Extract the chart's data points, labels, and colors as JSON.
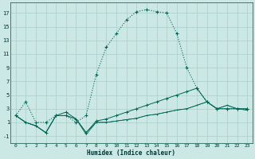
{
  "xlabel": "Humidex (Indice chaleur)",
  "bg_color": "#cce8e4",
  "grid_color": "#aacfcb",
  "line_color": "#006655",
  "xlim": [
    -0.5,
    23.5
  ],
  "ylim": [
    -2,
    18.5
  ],
  "xticks": [
    0,
    1,
    2,
    3,
    4,
    5,
    6,
    7,
    8,
    9,
    10,
    11,
    12,
    13,
    14,
    15,
    16,
    17,
    18,
    19,
    20,
    21,
    22,
    23
  ],
  "yticks": [
    -1,
    1,
    3,
    5,
    7,
    9,
    11,
    13,
    15,
    17
  ],
  "series1": [
    2,
    4,
    1,
    1,
    2,
    2,
    1,
    2,
    8,
    12,
    14,
    16,
    17.2,
    17.5,
    17.2,
    17,
    14,
    9,
    6,
    4,
    3,
    3,
    3,
    3
  ],
  "series2": [
    2,
    1,
    0.5,
    -0.5,
    2,
    2,
    1.5,
    -0.5,
    1,
    1,
    1.2,
    1.4,
    1.6,
    2,
    2.2,
    2.5,
    2.8,
    3,
    3.5,
    4,
    3,
    3.5,
    3,
    2.8
  ],
  "series3": [
    2,
    1,
    0.5,
    -0.5,
    2,
    2.5,
    1.5,
    -0.5,
    1.2,
    1.5,
    2,
    2.5,
    3,
    3.5,
    4,
    4.5,
    5,
    5.5,
    6,
    4,
    3,
    3,
    3,
    3
  ],
  "series4": [
    2,
    1,
    0.5,
    -0.5,
    2,
    2,
    1.5,
    -0.8,
    1,
    1,
    1.2,
    1.4,
    1.6,
    2,
    2.2,
    2.5,
    2.8,
    3,
    3.5,
    4,
    3,
    3.5,
    3,
    2.8
  ]
}
